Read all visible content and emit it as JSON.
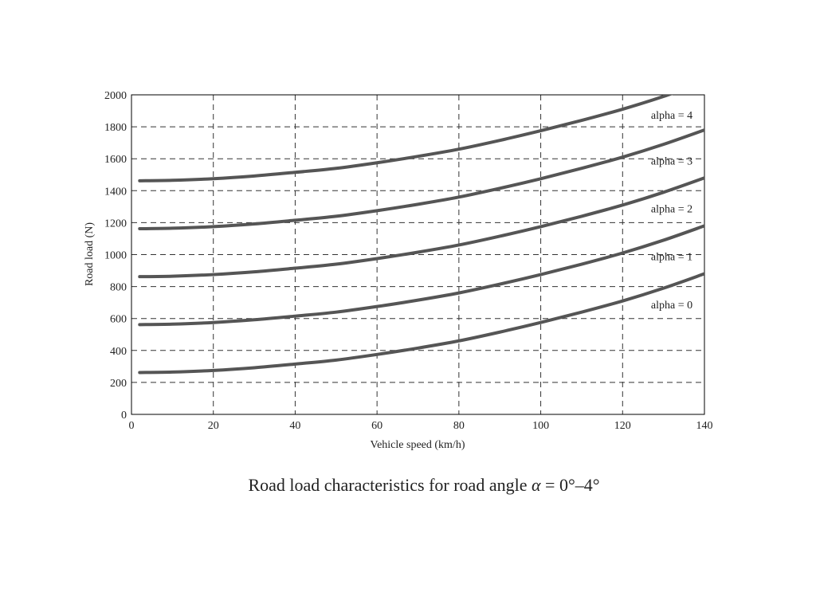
{
  "chart_data": {
    "type": "line",
    "xlabel": "Vehicle speed (km/h)",
    "ylabel": "Road load (N)",
    "xlim": [
      0,
      140
    ],
    "ylim": [
      0,
      2000
    ],
    "x_ticks": [
      "0",
      "20",
      "40",
      "60",
      "80",
      "100",
      "120",
      "140"
    ],
    "y_ticks": [
      "0",
      "200",
      "400",
      "600",
      "800",
      "1000",
      "1200",
      "1400",
      "1600",
      "1800",
      "2000"
    ],
    "grid": true,
    "x": [
      2,
      10,
      20,
      30,
      40,
      50,
      60,
      70,
      80,
      90,
      100,
      110,
      120,
      130,
      140
    ],
    "series": [
      {
        "name": "alpha = 0",
        "values": [
          262,
          265,
          275,
          292,
          315,
          340,
          375,
          415,
          460,
          515,
          575,
          640,
          710,
          790,
          880
        ]
      },
      {
        "name": "alpha = 1",
        "values": [
          562,
          565,
          575,
          592,
          615,
          640,
          675,
          715,
          760,
          815,
          875,
          940,
          1010,
          1090,
          1180
        ]
      },
      {
        "name": "alpha = 2",
        "values": [
          862,
          865,
          875,
          892,
          915,
          940,
          975,
          1015,
          1060,
          1115,
          1175,
          1240,
          1310,
          1390,
          1480
        ]
      },
      {
        "name": "alpha = 3",
        "values": [
          1162,
          1165,
          1175,
          1192,
          1215,
          1240,
          1275,
          1315,
          1360,
          1415,
          1475,
          1540,
          1610,
          1690,
          1780
        ]
      },
      {
        "name": "alpha = 4",
        "values": [
          1462,
          1465,
          1475,
          1492,
          1515,
          1540,
          1575,
          1615,
          1660,
          1715,
          1775,
          1840,
          1910,
          1990,
          2080
        ]
      }
    ],
    "colors": {
      "line": "#555555",
      "grid": "#333333",
      "axis": "#000000"
    }
  },
  "caption": {
    "prefix": "Road load characteristics for road angle ",
    "symbol": "α",
    "suffix": " = 0°–4°"
  }
}
